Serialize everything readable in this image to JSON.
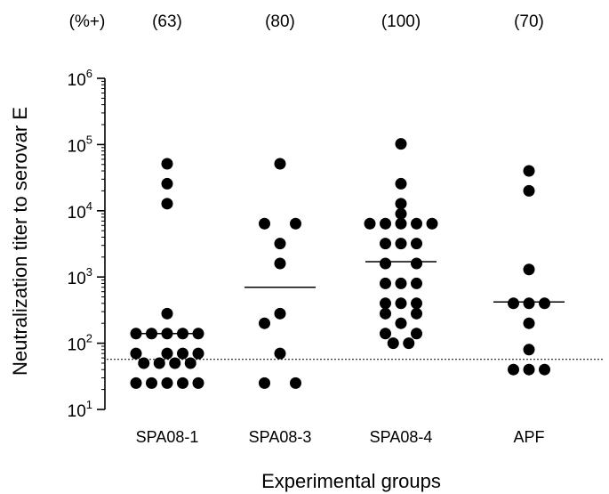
{
  "chart_data": {
    "type": "scatter",
    "title": "",
    "xlabel": "Experimental groups",
    "ylabel": "Neutralization titer to serovar E",
    "yscale": "log",
    "ylim": [
      10,
      1000000
    ],
    "y_ticks": [
      {
        "value": 10,
        "base": "10",
        "exp": "1"
      },
      {
        "value": 100,
        "base": "10",
        "exp": "2"
      },
      {
        "value": 1000,
        "base": "10",
        "exp": "3"
      },
      {
        "value": 10000,
        "base": "10",
        "exp": "4"
      },
      {
        "value": 100000,
        "base": "10",
        "exp": "5"
      },
      {
        "value": 1000000,
        "base": "10",
        "exp": "6"
      }
    ],
    "percent_header": "(%+)",
    "categories": [
      "SPA08-1",
      "SPA08-3",
      "SPA08-4",
      "APF"
    ],
    "percent_positive": [
      "(63)",
      "(80)",
      "(100)",
      "(70)"
    ],
    "threshold": 57,
    "groups": [
      {
        "name": "SPA08-1",
        "mean": 140,
        "points": [
          {
            "y": 51200,
            "col": 0
          },
          {
            "y": 25600,
            "col": 0
          },
          {
            "y": 12800,
            "col": 0
          },
          {
            "y": 280,
            "col": 0
          },
          {
            "y": 140,
            "col": -2
          },
          {
            "y": 140,
            "col": -1
          },
          {
            "y": 140,
            "col": 0
          },
          {
            "y": 140,
            "col": 1
          },
          {
            "y": 140,
            "col": 2
          },
          {
            "y": 70,
            "col": -2
          },
          {
            "y": 70,
            "col": 0
          },
          {
            "y": 70,
            "col": 1
          },
          {
            "y": 70,
            "col": 2
          },
          {
            "y": 50,
            "col": -1.5
          },
          {
            "y": 50,
            "col": -0.5
          },
          {
            "y": 50,
            "col": 0.5
          },
          {
            "y": 50,
            "col": 1.5
          },
          {
            "y": 25,
            "col": -2
          },
          {
            "y": 25,
            "col": -1
          },
          {
            "y": 25,
            "col": 0
          },
          {
            "y": 25,
            "col": 1
          },
          {
            "y": 25,
            "col": 2
          }
        ]
      },
      {
        "name": "SPA08-3",
        "mean": 700,
        "points": [
          {
            "y": 51200,
            "col": 0
          },
          {
            "y": 6400,
            "col": -1
          },
          {
            "y": 6400,
            "col": 1
          },
          {
            "y": 3200,
            "col": 0
          },
          {
            "y": 1600,
            "col": 0
          },
          {
            "y": 280,
            "col": 0
          },
          {
            "y": 200,
            "col": -1
          },
          {
            "y": 70,
            "col": 0
          },
          {
            "y": 25,
            "col": -1
          },
          {
            "y": 25,
            "col": 1
          }
        ]
      },
      {
        "name": "SPA08-4",
        "mean": 1700,
        "points": [
          {
            "y": 102400,
            "col": 0
          },
          {
            "y": 25600,
            "col": 0
          },
          {
            "y": 12800,
            "col": 0
          },
          {
            "y": 9000,
            "col": 0
          },
          {
            "y": 6400,
            "col": -2
          },
          {
            "y": 6400,
            "col": -1
          },
          {
            "y": 6400,
            "col": 0
          },
          {
            "y": 6400,
            "col": 1
          },
          {
            "y": 6400,
            "col": 2
          },
          {
            "y": 3200,
            "col": -1
          },
          {
            "y": 3200,
            "col": 0
          },
          {
            "y": 3200,
            "col": 1
          },
          {
            "y": 1600,
            "col": -1
          },
          {
            "y": 1600,
            "col": 1
          },
          {
            "y": 800,
            "col": -1
          },
          {
            "y": 800,
            "col": 0
          },
          {
            "y": 800,
            "col": 1
          },
          {
            "y": 400,
            "col": -1
          },
          {
            "y": 400,
            "col": 0
          },
          {
            "y": 400,
            "col": 1
          },
          {
            "y": 280,
            "col": -1
          },
          {
            "y": 280,
            "col": 1
          },
          {
            "y": 200,
            "col": 0
          },
          {
            "y": 140,
            "col": -1
          },
          {
            "y": 140,
            "col": 1
          },
          {
            "y": 100,
            "col": -0.5
          },
          {
            "y": 100,
            "col": 0.5
          }
        ]
      },
      {
        "name": "APF",
        "mean": 420,
        "points": [
          {
            "y": 40000,
            "col": 0
          },
          {
            "y": 20000,
            "col": 0
          },
          {
            "y": 1300,
            "col": 0
          },
          {
            "y": 400,
            "col": -1
          },
          {
            "y": 400,
            "col": 0
          },
          {
            "y": 400,
            "col": 1
          },
          {
            "y": 200,
            "col": 0
          },
          {
            "y": 80,
            "col": 0
          },
          {
            "y": 40,
            "col": -1
          },
          {
            "y": 40,
            "col": 0
          },
          {
            "y": 40,
            "col": 1
          }
        ]
      }
    ],
    "marker_color": "#000000",
    "grid": false,
    "legend": "none"
  }
}
